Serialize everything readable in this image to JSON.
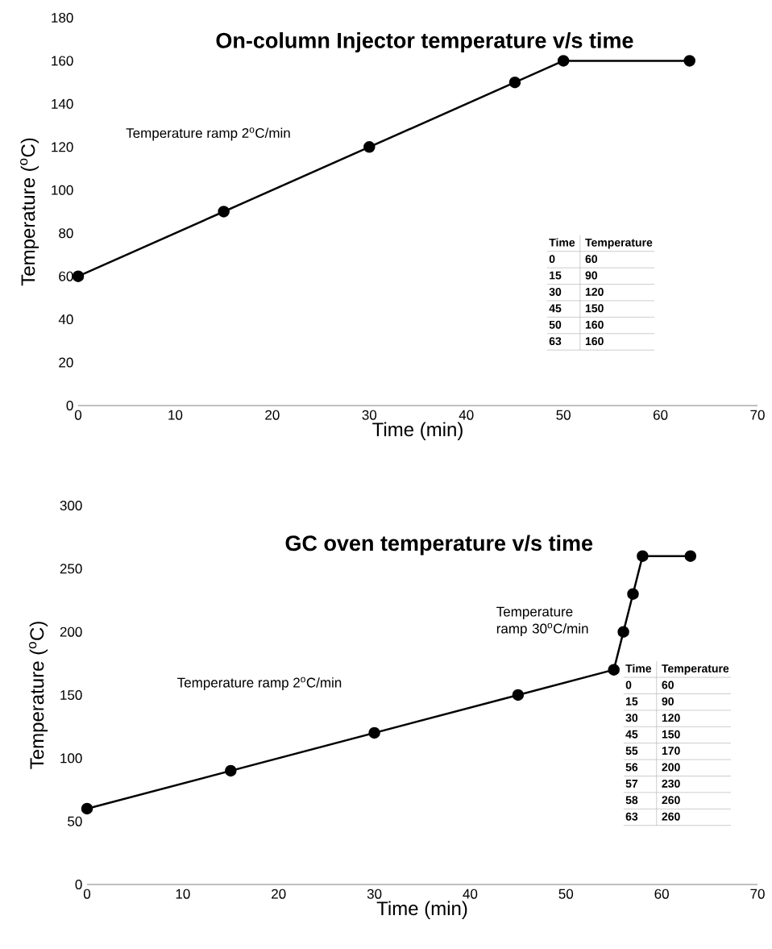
{
  "chart_data": [
    {
      "type": "line",
      "title": "On-column Injector temperature v/s time",
      "xlabel": "Time (min)",
      "ylabel": "Temperature ($^{o}$C)",
      "x": [
        0,
        15,
        30,
        45,
        50,
        63
      ],
      "values": [
        60,
        90,
        120,
        150,
        160,
        160
      ],
      "color": "#000000",
      "marker": "circle",
      "line_style": "solid",
      "xlim": [
        0,
        70
      ],
      "ylim": [
        0,
        180
      ],
      "xticks": [
        0,
        10,
        20,
        30,
        40,
        50,
        60,
        70
      ],
      "yticks": [
        0,
        20,
        40,
        60,
        80,
        100,
        120,
        140,
        160,
        180
      ],
      "annotations": [
        "Temperature ramp 2$^{o}$C/min",
        "Time",
        "Temperature",
        "0",
        "60",
        "15",
        "90",
        "30",
        "120",
        "45",
        "150",
        "50",
        "160",
        "63",
        "160"
      ]
    },
    {
      "type": "line",
      "title": "GC oven temperature v/s time",
      "xlabel": "Time (min)",
      "ylabel": "Temperature ($^{o}$C)",
      "x": [
        0,
        15,
        30,
        45,
        55,
        56,
        57,
        58,
        63
      ],
      "values": [
        60,
        90,
        120,
        150,
        170,
        200,
        230,
        260,
        260
      ],
      "color": "#000000",
      "marker": "circle",
      "line_style": "solid",
      "xlim": [
        0,
        70
      ],
      "ylim": [
        0,
        300
      ],
      "xticks": [
        0,
        10,
        20,
        30,
        40,
        50,
        60,
        70
      ],
      "yticks": [
        0,
        50,
        100,
        150,
        200,
        250,
        300
      ],
      "annotations": [
        "Temperature ramp 2$^{o}$C/min",
        "Temperature ramp 30$^{o}$C/min",
        "Time",
        "Temperature",
        "0",
        "60",
        "15",
        "90",
        "30",
        "120",
        "45",
        "150",
        "55",
        "170",
        "56",
        "200",
        "57",
        "230",
        "58",
        "260",
        "63",
        "260"
      ]
    }
  ]
}
